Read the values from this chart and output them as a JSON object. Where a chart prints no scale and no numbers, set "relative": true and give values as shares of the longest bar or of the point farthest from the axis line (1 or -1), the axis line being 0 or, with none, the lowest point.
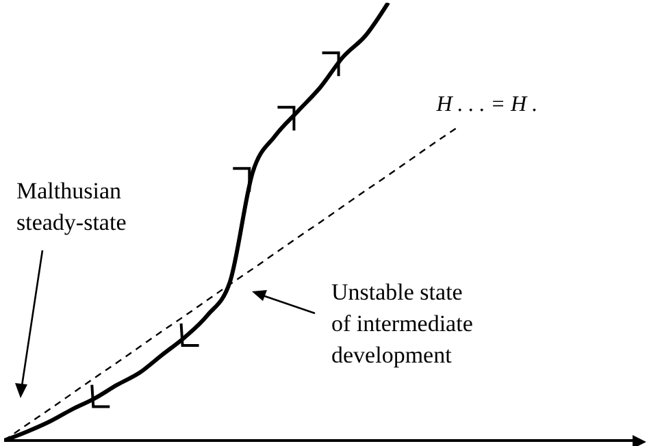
{
  "chart_data": {
    "type": "line",
    "relative": true,
    "categories": [
      null,
      null,
      null,
      null,
      null,
      null,
      null,
      null,
      null,
      null,
      null,
      null,
      null,
      null,
      null,
      null,
      null,
      null,
      null,
      null,
      null,
      null,
      null,
      null,
      null,
      null,
      null,
      null,
      null
    ],
    "series": [
      {
        "color": "#000000",
        "values": [
          0,
          0.02,
          0.043,
          0.071,
          0.096,
          0.127,
          0.155,
          0.196,
          0.236,
          0.286,
          0.363,
          0.612,
          0.696,
          0.752,
          0.807,
          0.876,
          0.925,
          1,
          null,
          null,
          null,
          null,
          null,
          null,
          null,
          null,
          null,
          null,
          null
        ]
      },
      {
        "name": "H . . . = H .",
        "color": "#000000",
        "line_style": "dashed",
        "values": [
          0,
          0.036,
          0.071,
          0.107,
          0.143,
          0.178,
          0.214,
          0.25,
          0.285,
          0.321,
          0.357,
          0.392,
          0.428,
          0.464,
          0.499,
          0.535,
          0.571,
          0.606,
          0.642,
          0.678,
          0.713,
          null,
          null,
          null,
          null,
          null,
          null,
          null,
          null
        ]
      }
    ],
    "annotations": [
      "Malthusian steady-state",
      "Unstable state of intermediate development"
    ],
    "grid": false
  }
}
